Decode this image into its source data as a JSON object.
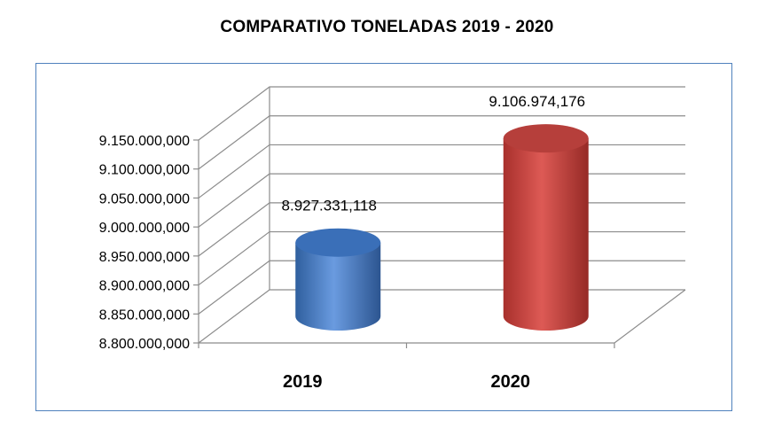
{
  "chart_data": {
    "type": "bar",
    "style": "3d-cylinder",
    "title": "COMPARATIVO TONELADAS 2019 - 2020",
    "categories": [
      "2019",
      "2020"
    ],
    "series": [
      {
        "values": [
          8927331118,
          9106974176
        ],
        "colors": [
          "#4f81bd",
          "#c0504d"
        ]
      }
    ],
    "data_labels": [
      "8.927.331,118",
      "9.106.974,176"
    ],
    "ylim": [
      8800000000,
      9150000000
    ],
    "y_ticks": [
      8800000000,
      8850000000,
      8900000000,
      8950000000,
      9000000000,
      9050000000,
      9100000000,
      9150000000
    ],
    "y_tick_labels": [
      "8.800.000,000",
      "8.850.000,000",
      "8.900.000,000",
      "8.950.000,000",
      "9.000.000,000",
      "9.050.000,000",
      "9.100.000,000",
      "9.150.000,000"
    ],
    "grid": true,
    "legend": "none"
  }
}
